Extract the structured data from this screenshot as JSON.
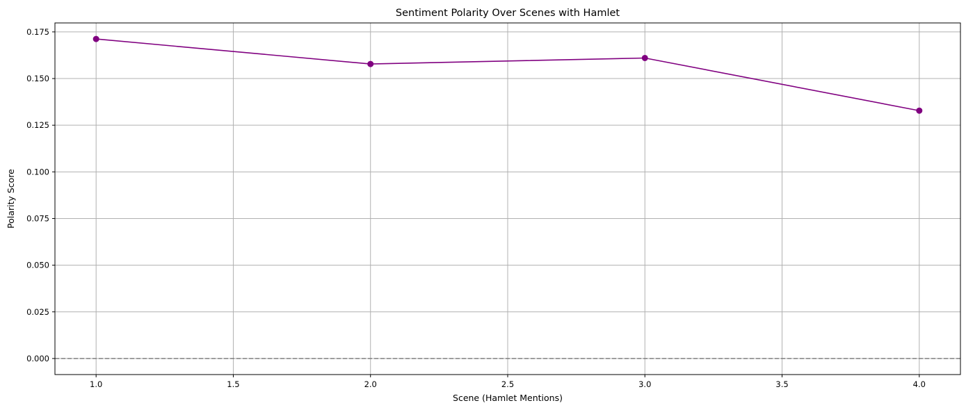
{
  "chart_data": {
    "type": "line",
    "title": "Sentiment Polarity Over Scenes with Hamlet",
    "xlabel": "Scene (Hamlet Mentions)",
    "ylabel": "Polarity Score",
    "x": [
      1,
      2,
      3,
      4
    ],
    "series": [
      {
        "values": [
          0.1712,
          0.1578,
          0.161,
          0.1328
        ],
        "color": "#800080",
        "marker": "circle"
      }
    ],
    "xlim": [
      0.85,
      4.15
    ],
    "ylim": [
      -0.0086,
      0.1798
    ],
    "xticks": [
      1.0,
      1.5,
      2.0,
      2.5,
      3.0,
      3.5,
      4.0
    ],
    "xtick_labels": [
      "1.0",
      "1.5",
      "2.0",
      "2.5",
      "3.0",
      "3.5",
      "4.0"
    ],
    "yticks": [
      0.0,
      0.025,
      0.05,
      0.075,
      0.1,
      0.125,
      0.15,
      0.175
    ],
    "ytick_labels": [
      "0.000",
      "0.025",
      "0.050",
      "0.075",
      "0.100",
      "0.125",
      "0.150",
      "0.175"
    ],
    "reference_line": {
      "y": 0,
      "style": "dashed",
      "color": "#808080"
    },
    "grid": true,
    "legend": "none"
  }
}
